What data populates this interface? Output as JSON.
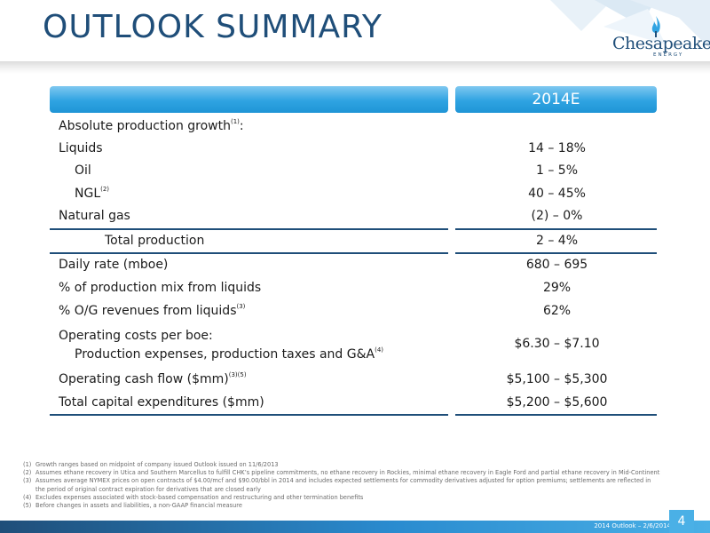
{
  "title": "OUTLOOK SUMMARY",
  "logo": {
    "word": "Chesapeake",
    "sub": "ENERGY"
  },
  "table": {
    "column_header": "2014E",
    "rows": [
      {
        "label": "Absolute production growth",
        "sup": "(1)",
        "suffix": ":",
        "value": ""
      },
      {
        "label": "Liquids",
        "sup": "",
        "suffix": "",
        "value": "14 – 18%"
      },
      {
        "label": "Oil",
        "sup": "",
        "suffix": "",
        "value": "1 – 5%"
      },
      {
        "label": "NGL",
        "sup": "(2)",
        "suffix": "",
        "value": "40 – 45%"
      },
      {
        "label": "Natural gas",
        "sup": "",
        "suffix": "",
        "value": "(2) – 0%"
      },
      {
        "label": "Total production",
        "sup": "",
        "suffix": "",
        "value": "2 – 4%"
      },
      {
        "label": "Daily rate (mboe)",
        "sup": "",
        "suffix": "",
        "value": "680 – 695"
      },
      {
        "label": "% of production mix from liquids",
        "sup": "",
        "suffix": "",
        "value": "29%"
      },
      {
        "label": "% O/G revenues from liquids",
        "sup": "(3)",
        "suffix": "",
        "value": "62%"
      },
      {
        "label": "Operating costs per boe:",
        "sup": "",
        "suffix": "",
        "value": "$6.30 – $7.10"
      },
      {
        "label": "Production expenses, production taxes and G&A",
        "sup": "(4)",
        "suffix": "",
        "value": ""
      },
      {
        "label": "Operating cash flow ($mm)",
        "sup": "(3)(5)",
        "suffix": "",
        "value": "$5,100 – $5,300"
      },
      {
        "label": "Total capital expenditures ($mm)",
        "sup": "",
        "suffix": "",
        "value": "$5,200 – $5,600"
      }
    ]
  },
  "footnotes": [
    {
      "num": "(1)",
      "text": "Growth ranges based on midpoint of company issued Outlook issued on 11/6/2013"
    },
    {
      "num": "(2)",
      "text": "Assumes ethane recovery in Utica and Southern Marcellus to fulfill CHK’s pipeline commitments, no ethane recovery in Rockies, minimal ethane recovery in Eagle Ford and partial ethane recovery in Mid-Continent"
    },
    {
      "num": "(3)",
      "text": "Assumes average NYMEX prices on open contracts of $4.00/mcf and $90.00/bbl in 2014 and includes expected settlements for commodity derivatives adjusted for option premiums; settlements are reflected in the period of original contract expiration for derivatives that are closed early"
    },
    {
      "num": "(4)",
      "text": "Excludes expenses associated with stock-based compensation and restructuring and other termination benefits"
    },
    {
      "num": "(5)",
      "text": "Before changes in assets and liabilities, a non-GAAP financial measure"
    }
  ],
  "footer": {
    "text": "2014 Outlook – 2/6/2014",
    "page": "4"
  },
  "colors": {
    "title": "#1f4e79",
    "header": "#2fa3e2",
    "rule": "#1f4e79",
    "footer": "#2a8bcf"
  }
}
